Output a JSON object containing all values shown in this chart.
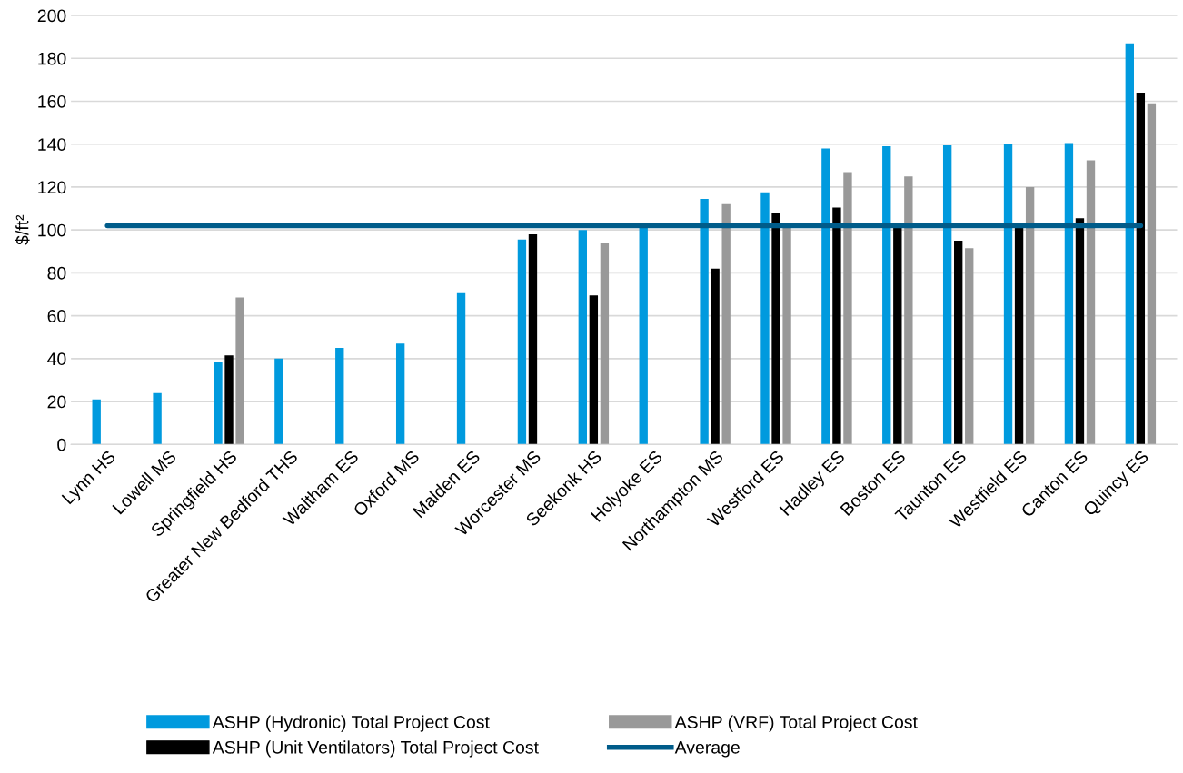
{
  "chart_data": {
    "type": "bar",
    "ylabel": "$/ft²",
    "categories": [
      "Lynn HS",
      "Lowell MS",
      "Springfield HS",
      "Greater New Bedford THS",
      "Waltham ES",
      "Oxford MS",
      "Malden ES",
      "Worcester MS",
      "Seekonk HS",
      "Holyoke ES",
      "Northampton MS",
      "Westford ES",
      "Hadley ES",
      "Boston ES",
      "Taunton ES",
      "Westfield ES",
      "Canton ES",
      "Quincy ES"
    ],
    "series": [
      {
        "name": "ASHP (Hydronic) Total Project Cost",
        "color": "#009ade",
        "values": [
          21,
          24,
          38.5,
          40,
          45,
          47,
          70.5,
          95.5,
          100,
          101,
          114.5,
          117.5,
          138,
          139,
          139.5,
          140,
          140.5,
          187
        ]
      },
      {
        "name": "ASHP (Unit Ventilators) Total Project Cost",
        "color": "#000000",
        "values": [
          null,
          null,
          41.5,
          null,
          null,
          null,
          null,
          98,
          69.5,
          null,
          82,
          108,
          110.5,
          101,
          95,
          101,
          105.5,
          164
        ]
      },
      {
        "name": "ASHP (VRF) Total Project Cost",
        "color": "#999999",
        "values": [
          null,
          null,
          68.5,
          null,
          null,
          null,
          null,
          null,
          94,
          null,
          112,
          101,
          127,
          125,
          91.5,
          120,
          132.5,
          159
        ]
      },
      {
        "name": "Average",
        "type": "line",
        "color": "#005c8a",
        "values": [
          102,
          102,
          102,
          102,
          102,
          102,
          102,
          102,
          102,
          102,
          102,
          102,
          102,
          102,
          102,
          102,
          102,
          102
        ]
      }
    ],
    "ylim": [
      0,
      200
    ],
    "yticks": [
      0,
      20,
      40,
      60,
      80,
      100,
      120,
      140,
      160,
      180,
      200
    ],
    "grid": "y",
    "legend": "bottom"
  }
}
